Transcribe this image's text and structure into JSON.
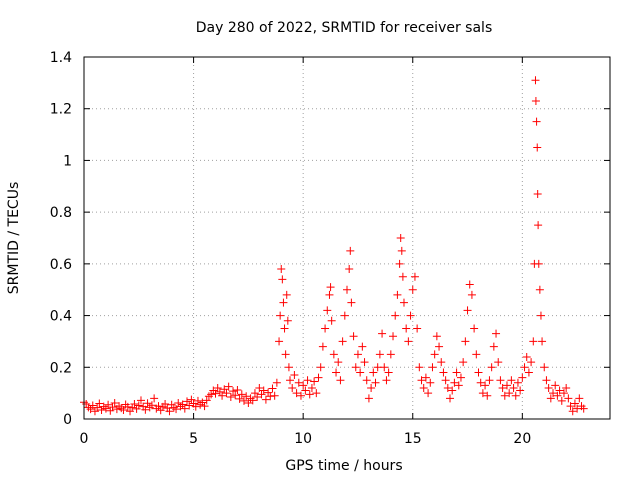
{
  "chart_data": {
    "type": "scatter",
    "title": "Day 280 of 2022, SRMTID for receiver sals",
    "xlabel": "GPS time / hours",
    "ylabel": "SRMTID / TECUs",
    "xlim": [
      0,
      24
    ],
    "ylim": [
      0,
      1.4
    ],
    "x_ticks": [
      0,
      5,
      10,
      15,
      20
    ],
    "x_tick_labels": [
      "0",
      "5",
      "10",
      "15",
      "20"
    ],
    "y_ticks": [
      0,
      0.2,
      0.4,
      0.6,
      0.8,
      1,
      1.2,
      1.4
    ],
    "y_tick_labels": [
      "0",
      "0.2",
      "0.4",
      "0.6",
      "0.8",
      "1",
      "1.2",
      "1.4"
    ],
    "grid": true,
    "marker": "+",
    "color": "#ff0000",
    "series": [
      {
        "name": "SRMTID",
        "points": [
          [
            0.0,
            0.065
          ],
          [
            0.1,
            0.058
          ],
          [
            0.2,
            0.045
          ],
          [
            0.3,
            0.038
          ],
          [
            0.4,
            0.052
          ],
          [
            0.5,
            0.03
          ],
          [
            0.6,
            0.044
          ],
          [
            0.7,
            0.06
          ],
          [
            0.8,
            0.035
          ],
          [
            0.9,
            0.048
          ],
          [
            1.0,
            0.04
          ],
          [
            1.1,
            0.055
          ],
          [
            1.2,
            0.032
          ],
          [
            1.3,
            0.046
          ],
          [
            1.4,
            0.062
          ],
          [
            1.5,
            0.038
          ],
          [
            1.6,
            0.05
          ],
          [
            1.7,
            0.042
          ],
          [
            1.8,
            0.035
          ],
          [
            1.9,
            0.056
          ],
          [
            2.0,
            0.047
          ],
          [
            2.1,
            0.03
          ],
          [
            2.2,
            0.044
          ],
          [
            2.3,
            0.058
          ],
          [
            2.4,
            0.039
          ],
          [
            2.5,
            0.052
          ],
          [
            2.6,
            0.072
          ],
          [
            2.7,
            0.048
          ],
          [
            2.8,
            0.036
          ],
          [
            2.9,
            0.061
          ],
          [
            3.0,
            0.045
          ],
          [
            3.1,
            0.053
          ],
          [
            3.2,
            0.08
          ],
          [
            3.3,
            0.04
          ],
          [
            3.4,
            0.05
          ],
          [
            3.5,
            0.034
          ],
          [
            3.6,
            0.047
          ],
          [
            3.7,
            0.058
          ],
          [
            3.8,
            0.042
          ],
          [
            3.9,
            0.03
          ],
          [
            4.0,
            0.055
          ],
          [
            4.1,
            0.044
          ],
          [
            4.2,
            0.038
          ],
          [
            4.3,
            0.062
          ],
          [
            4.4,
            0.049
          ],
          [
            4.5,
            0.056
          ],
          [
            4.6,
            0.04
          ],
          [
            4.7,
            0.068
          ],
          [
            4.8,
            0.052
          ],
          [
            4.9,
            0.075
          ],
          [
            5.0,
            0.06
          ],
          [
            5.1,
            0.048
          ],
          [
            5.2,
            0.07
          ],
          [
            5.3,
            0.055
          ],
          [
            5.4,
            0.064
          ],
          [
            5.5,
            0.05
          ],
          [
            5.6,
            0.072
          ],
          [
            5.7,
            0.088
          ],
          [
            5.8,
            0.095
          ],
          [
            5.9,
            0.11
          ],
          [
            6.0,
            0.098
          ],
          [
            6.1,
            0.12
          ],
          [
            6.2,
            0.105
          ],
          [
            6.3,
            0.09
          ],
          [
            6.4,
            0.115
          ],
          [
            6.5,
            0.1
          ],
          [
            6.6,
            0.125
          ],
          [
            6.7,
            0.085
          ],
          [
            6.8,
            0.108
          ],
          [
            6.9,
            0.092
          ],
          [
            7.0,
            0.112
          ],
          [
            7.1,
            0.078
          ],
          [
            7.2,
            0.095
          ],
          [
            7.3,
            0.07
          ],
          [
            7.4,
            0.088
          ],
          [
            7.5,
            0.062
          ],
          [
            7.6,
            0.08
          ],
          [
            7.7,
            0.072
          ],
          [
            7.8,
            0.1
          ],
          [
            7.9,
            0.085
          ],
          [
            8.0,
            0.12
          ],
          [
            8.1,
            0.095
          ],
          [
            8.2,
            0.11
          ],
          [
            8.3,
            0.075
          ],
          [
            8.4,
            0.102
          ],
          [
            8.5,
            0.088
          ],
          [
            8.6,
            0.118
          ],
          [
            8.7,
            0.09
          ],
          [
            8.8,
            0.14
          ],
          [
            8.9,
            0.3
          ],
          [
            8.95,
            0.4
          ],
          [
            9.0,
            0.58
          ],
          [
            9.05,
            0.54
          ],
          [
            9.1,
            0.45
          ],
          [
            9.15,
            0.35
          ],
          [
            9.2,
            0.25
          ],
          [
            9.25,
            0.48
          ],
          [
            9.3,
            0.38
          ],
          [
            9.35,
            0.2
          ],
          [
            9.4,
            0.15
          ],
          [
            9.5,
            0.12
          ],
          [
            9.6,
            0.17
          ],
          [
            9.7,
            0.1
          ],
          [
            9.8,
            0.14
          ],
          [
            9.9,
            0.09
          ],
          [
            10.0,
            0.13
          ],
          [
            10.1,
            0.11
          ],
          [
            10.2,
            0.15
          ],
          [
            10.3,
            0.095
          ],
          [
            10.4,
            0.12
          ],
          [
            10.5,
            0.145
          ],
          [
            10.6,
            0.1
          ],
          [
            10.7,
            0.16
          ],
          [
            10.8,
            0.2
          ],
          [
            10.9,
            0.28
          ],
          [
            11.0,
            0.35
          ],
          [
            11.1,
            0.42
          ],
          [
            11.2,
            0.48
          ],
          [
            11.25,
            0.51
          ],
          [
            11.3,
            0.38
          ],
          [
            11.4,
            0.25
          ],
          [
            11.5,
            0.18
          ],
          [
            11.6,
            0.22
          ],
          [
            11.7,
            0.15
          ],
          [
            11.8,
            0.3
          ],
          [
            11.9,
            0.4
          ],
          [
            12.0,
            0.5
          ],
          [
            12.1,
            0.58
          ],
          [
            12.15,
            0.65
          ],
          [
            12.2,
            0.45
          ],
          [
            12.3,
            0.32
          ],
          [
            12.4,
            0.2
          ],
          [
            12.5,
            0.25
          ],
          [
            12.6,
            0.18
          ],
          [
            12.7,
            0.28
          ],
          [
            12.8,
            0.22
          ],
          [
            12.9,
            0.15
          ],
          [
            13.0,
            0.08
          ],
          [
            13.1,
            0.12
          ],
          [
            13.2,
            0.18
          ],
          [
            13.3,
            0.14
          ],
          [
            13.4,
            0.2
          ],
          [
            13.5,
            0.25
          ],
          [
            13.6,
            0.33
          ],
          [
            13.7,
            0.2
          ],
          [
            13.8,
            0.15
          ],
          [
            13.9,
            0.18
          ],
          [
            14.0,
            0.25
          ],
          [
            14.1,
            0.32
          ],
          [
            14.2,
            0.4
          ],
          [
            14.3,
            0.48
          ],
          [
            14.4,
            0.6
          ],
          [
            14.45,
            0.7
          ],
          [
            14.5,
            0.65
          ],
          [
            14.55,
            0.55
          ],
          [
            14.6,
            0.45
          ],
          [
            14.7,
            0.35
          ],
          [
            14.8,
            0.3
          ],
          [
            14.9,
            0.4
          ],
          [
            15.0,
            0.5
          ],
          [
            15.1,
            0.55
          ],
          [
            15.2,
            0.35
          ],
          [
            15.3,
            0.2
          ],
          [
            15.4,
            0.15
          ],
          [
            15.5,
            0.12
          ],
          [
            15.6,
            0.16
          ],
          [
            15.7,
            0.1
          ],
          [
            15.8,
            0.14
          ],
          [
            15.9,
            0.2
          ],
          [
            16.0,
            0.25
          ],
          [
            16.1,
            0.32
          ],
          [
            16.2,
            0.28
          ],
          [
            16.3,
            0.22
          ],
          [
            16.4,
            0.18
          ],
          [
            16.5,
            0.15
          ],
          [
            16.6,
            0.12
          ],
          [
            16.7,
            0.08
          ],
          [
            16.8,
            0.11
          ],
          [
            16.9,
            0.14
          ],
          [
            17.0,
            0.18
          ],
          [
            17.1,
            0.13
          ],
          [
            17.2,
            0.16
          ],
          [
            17.3,
            0.22
          ],
          [
            17.4,
            0.3
          ],
          [
            17.5,
            0.42
          ],
          [
            17.6,
            0.52
          ],
          [
            17.7,
            0.48
          ],
          [
            17.8,
            0.35
          ],
          [
            17.9,
            0.25
          ],
          [
            18.0,
            0.18
          ],
          [
            18.1,
            0.14
          ],
          [
            18.2,
            0.1
          ],
          [
            18.3,
            0.13
          ],
          [
            18.4,
            0.09
          ],
          [
            18.5,
            0.15
          ],
          [
            18.6,
            0.2
          ],
          [
            18.7,
            0.28
          ],
          [
            18.8,
            0.33
          ],
          [
            18.9,
            0.22
          ],
          [
            19.0,
            0.15
          ],
          [
            19.1,
            0.12
          ],
          [
            19.2,
            0.09
          ],
          [
            19.3,
            0.13
          ],
          [
            19.4,
            0.1
          ],
          [
            19.5,
            0.15
          ],
          [
            19.6,
            0.12
          ],
          [
            19.7,
            0.09
          ],
          [
            19.8,
            0.14
          ],
          [
            19.9,
            0.11
          ],
          [
            20.0,
            0.16
          ],
          [
            20.1,
            0.2
          ],
          [
            20.2,
            0.24
          ],
          [
            20.3,
            0.18
          ],
          [
            20.4,
            0.22
          ],
          [
            20.5,
            0.3
          ],
          [
            20.55,
            0.6
          ],
          [
            20.6,
            1.31
          ],
          [
            20.62,
            1.23
          ],
          [
            20.65,
            1.15
          ],
          [
            20.68,
            1.05
          ],
          [
            20.7,
            0.87
          ],
          [
            20.72,
            0.75
          ],
          [
            20.75,
            0.6
          ],
          [
            20.8,
            0.5
          ],
          [
            20.85,
            0.4
          ],
          [
            20.9,
            0.3
          ],
          [
            21.0,
            0.2
          ],
          [
            21.1,
            0.15
          ],
          [
            21.2,
            0.12
          ],
          [
            21.3,
            0.08
          ],
          [
            21.4,
            0.1
          ],
          [
            21.5,
            0.13
          ],
          [
            21.6,
            0.09
          ],
          [
            21.7,
            0.11
          ],
          [
            21.8,
            0.07
          ],
          [
            21.9,
            0.1
          ],
          [
            22.0,
            0.12
          ],
          [
            22.1,
            0.08
          ],
          [
            22.2,
            0.05
          ],
          [
            22.3,
            0.03
          ],
          [
            22.4,
            0.06
          ],
          [
            22.5,
            0.04
          ],
          [
            22.6,
            0.08
          ],
          [
            22.7,
            0.05
          ],
          [
            22.8,
            0.04
          ]
        ]
      }
    ]
  }
}
